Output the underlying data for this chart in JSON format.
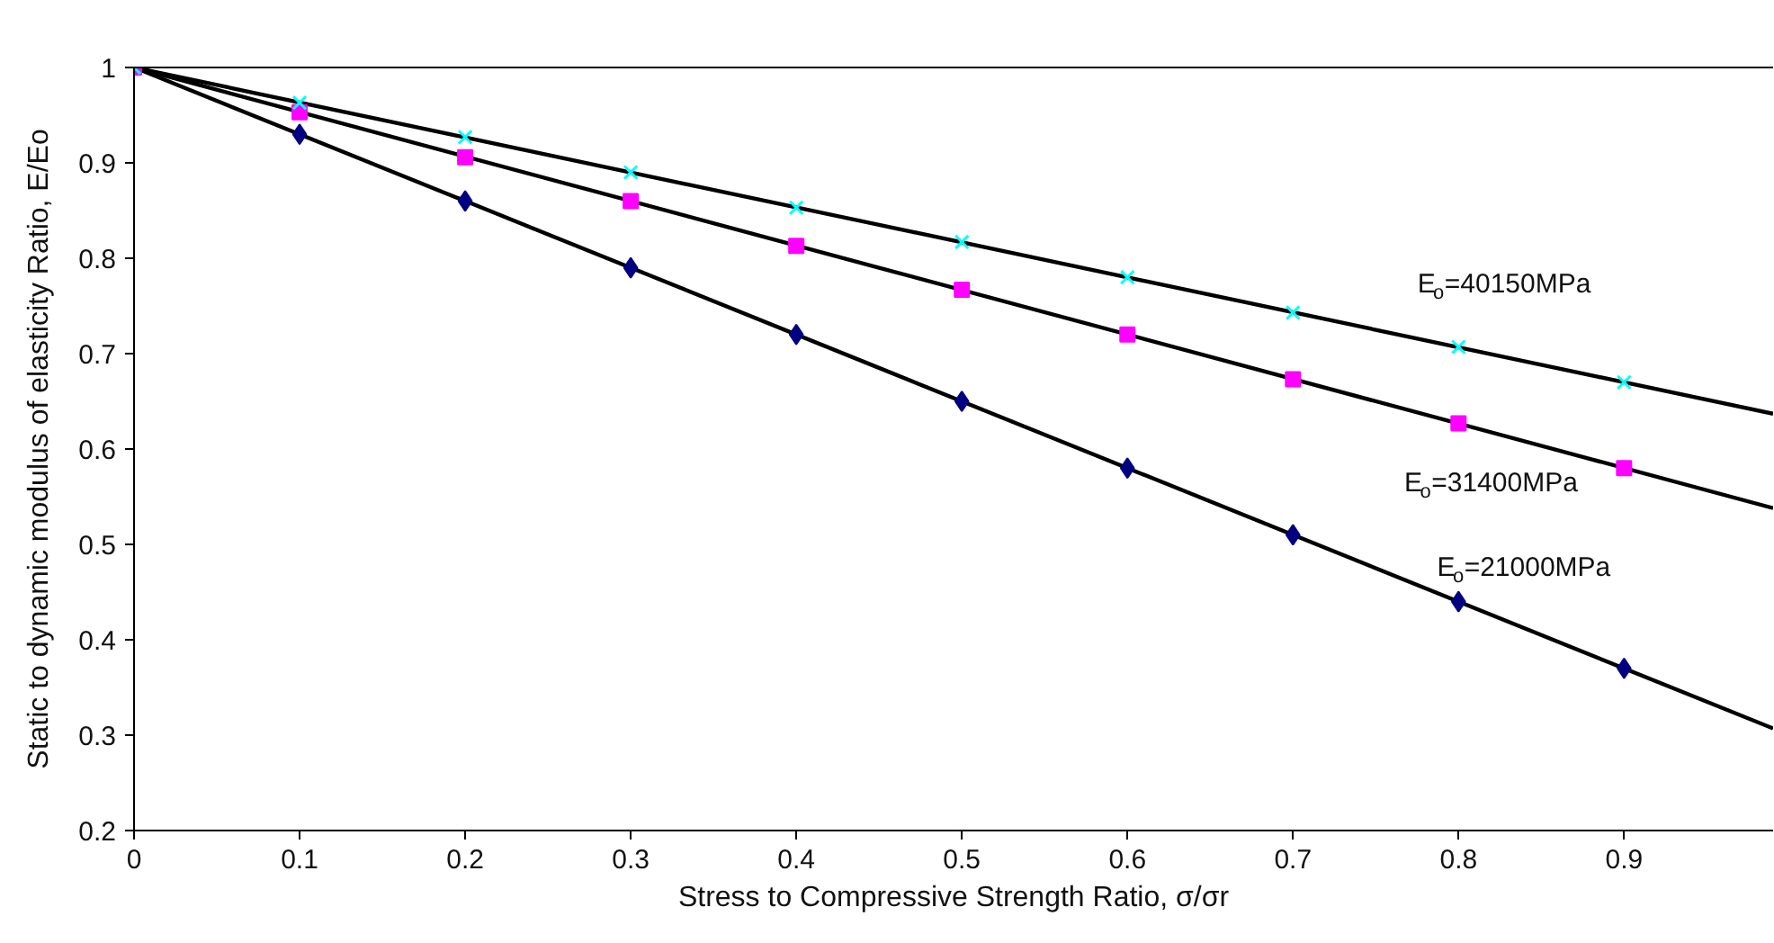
{
  "chart_data": {
    "type": "scatter",
    "xlabel": "Stress to Compressive Strength Ratio, σ/σr",
    "ylabel": "Static to dynamic modulus of elasticity Ratio, E/Eo",
    "x": [
      0,
      0.1,
      0.2,
      0.3,
      0.4,
      0.5,
      0.6,
      0.7,
      0.8,
      0.9
    ],
    "series": [
      {
        "color": "#000080",
        "marker": "diamond",
        "values": [
          null,
          0.93,
          0.86,
          0.79,
          0.72,
          0.65,
          0.58,
          0.51,
          0.44,
          0.37
        ]
      },
      {
        "color": "#ff00ff",
        "marker": "square",
        "values": [
          1,
          0.953,
          0.906,
          0.86,
          0.813,
          0.767,
          0.72,
          0.673,
          0.627,
          0.58
        ]
      },
      {
        "color": "#00ffff",
        "marker": "cross",
        "values": [
          1,
          0.963,
          0.927,
          0.89,
          0.853,
          0.817,
          0.78,
          0.743,
          0.707,
          0.67
        ]
      },
      {
        "type": "line",
        "name": "E$_{o}$=21000MPa",
        "color": "#000000",
        "line_style": "solid",
        "x": [
          0,
          0.45,
          0.99
        ],
        "values": [
          1,
          0.685,
          0.307
        ]
      },
      {
        "type": "line",
        "name": "E$_{o}$=31400MPa",
        "color": "#000000",
        "line_style": "solid",
        "x": [
          0,
          0.45,
          0.99
        ],
        "values": [
          1,
          0.79,
          0.538
        ]
      },
      {
        "type": "line",
        "name": "E$_{o}$=40150MPa",
        "color": "#000000",
        "line_style": "solid",
        "x": [
          0,
          0.45,
          0.99
        ],
        "values": [
          1,
          0.835,
          0.637
        ]
      }
    ],
    "xlim": [
      0,
      0.99
    ],
    "ylim": [
      0.2,
      1
    ],
    "xticks": [
      0,
      0.1,
      0.2,
      0.3,
      0.4,
      0.5,
      0.6,
      0.7,
      0.8,
      0.9
    ],
    "yticks": [
      0.2,
      0.3,
      0.4,
      0.5,
      0.6,
      0.7,
      0.8,
      0.9,
      1
    ]
  }
}
